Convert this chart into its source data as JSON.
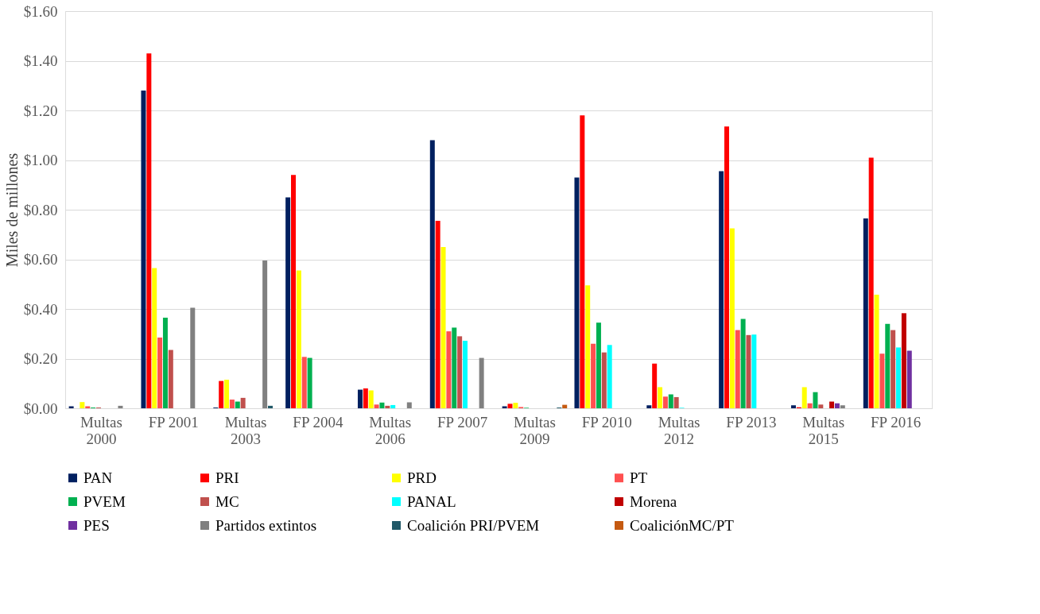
{
  "chart_data": {
    "type": "bar",
    "ylabel": "Miles de millones",
    "categories": [
      "Multas 2000",
      "FP 2001",
      "Multas 2003",
      "FP 2004",
      "Multas 2006",
      "FP 2007",
      "Multas 2009",
      "FP 2010",
      "Multas 2012",
      "FP 2013",
      "Multas 2015",
      "FP 2016"
    ],
    "series": [
      {
        "name": "PAN",
        "color": "#002060",
        "values": [
          0.008,
          1.28,
          0.003,
          0.85,
          0.075,
          1.08,
          0.008,
          0.93,
          0.012,
          0.955,
          0.012,
          0.765
        ]
      },
      {
        "name": "PRI",
        "color": "#ff0000",
        "values": [
          null,
          1.43,
          0.11,
          0.94,
          0.08,
          0.755,
          0.018,
          1.18,
          0.18,
          1.135,
          0.004,
          1.01
        ]
      },
      {
        "name": "PRD",
        "color": "#ffff00",
        "values": [
          0.025,
          0.565,
          0.115,
          0.555,
          0.072,
          0.65,
          0.022,
          0.495,
          0.085,
          0.725,
          0.085,
          0.458
        ]
      },
      {
        "name": "PT",
        "color": "#ff5050",
        "values": [
          0.008,
          0.285,
          0.035,
          0.207,
          0.015,
          0.31,
          0.005,
          0.26,
          0.047,
          0.315,
          0.02,
          0.22
        ]
      },
      {
        "name": "PVEM",
        "color": "#00b050",
        "values": [
          0.003,
          0.365,
          0.027,
          0.203,
          0.023,
          0.325,
          0.002,
          0.345,
          0.056,
          0.36,
          0.065,
          0.34
        ]
      },
      {
        "name": "MC",
        "color": "#c0504d",
        "values": [
          0.003,
          0.235,
          0.042,
          null,
          0.01,
          0.29,
          null,
          0.225,
          0.045,
          0.295,
          0.015,
          0.315
        ]
      },
      {
        "name": "PANAL",
        "color": "#00ffff",
        "values": [
          null,
          null,
          null,
          null,
          0.013,
          0.272,
          null,
          0.255,
          0.002,
          0.297,
          null,
          0.245
        ]
      },
      {
        "name": "Morena",
        "color": "#c00000",
        "values": [
          null,
          null,
          null,
          null,
          null,
          null,
          null,
          null,
          null,
          null,
          0.027,
          0.383
        ]
      },
      {
        "name": "PES",
        "color": "#7030a0",
        "values": [
          null,
          null,
          null,
          null,
          null,
          null,
          null,
          null,
          null,
          null,
          0.02,
          0.232
        ]
      },
      {
        "name": "Partidos extintos",
        "color": "#808080",
        "values": [
          0.01,
          0.405,
          0.595,
          null,
          0.024,
          0.203,
          null,
          null,
          null,
          null,
          0.012,
          null
        ]
      },
      {
        "name": "Coalición PRI/PVEM",
        "color": "#215968",
        "values": [
          null,
          null,
          0.01,
          null,
          null,
          null,
          0.003,
          null,
          null,
          null,
          null,
          null
        ]
      },
      {
        "name": "CoaliciónMC/PT",
        "color": "#c55a11",
        "values": [
          null,
          null,
          null,
          null,
          null,
          null,
          0.014,
          null,
          null,
          null,
          null,
          null
        ]
      }
    ],
    "ylim": [
      0,
      1.6
    ],
    "yticks": [
      {
        "value": 0,
        "label": "$0.00"
      },
      {
        "value": 0.2,
        "label": "$0.20"
      },
      {
        "value": 0.4,
        "label": "$0.40"
      },
      {
        "value": 0.6,
        "label": "$0.60"
      },
      {
        "value": 0.8,
        "label": "$0.80"
      },
      {
        "value": 1.0,
        "label": "$1.00"
      },
      {
        "value": 1.2,
        "label": "$1.20"
      },
      {
        "value": 1.4,
        "label": "$1.40"
      },
      {
        "value": 1.6,
        "label": "$1.60"
      }
    ],
    "grid": "y",
    "legend": "bottom"
  }
}
